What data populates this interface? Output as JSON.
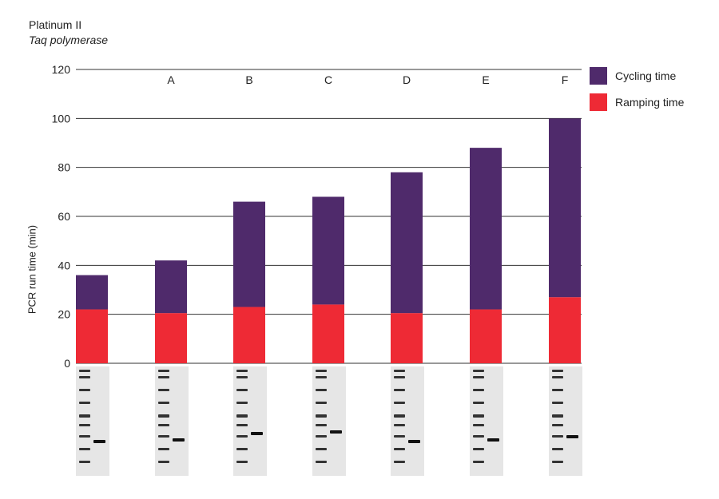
{
  "chart_data": {
    "type": "bar",
    "stacked": true,
    "title": "",
    "corner_label": [
      "Platinum II",
      "Taq polymerase"
    ],
    "categories": [
      "Platinum II Taq polymerase",
      "A",
      "B",
      "C",
      "D",
      "E",
      "F"
    ],
    "category_labels": [
      "",
      "A",
      "B",
      "C",
      "D",
      "E",
      "F"
    ],
    "series": [
      {
        "name": "Ramping time",
        "color": "#ee2a35",
        "values": [
          22,
          20.5,
          23,
          24,
          20.5,
          22,
          27
        ]
      },
      {
        "name": "Cycling time",
        "color": "#4f2a6b",
        "values": [
          14,
          21.5,
          43,
          44,
          57.5,
          66,
          73
        ]
      }
    ],
    "totals": [
      36,
      42,
      66,
      68,
      78,
      88,
      100
    ],
    "xlabel": "",
    "ylabel": "PCR run time (min)",
    "ylim": [
      0,
      120
    ],
    "yticks": [
      0,
      20,
      40,
      60,
      80,
      100,
      120
    ],
    "grid": true,
    "legend_position": "right",
    "gel_images_below_bars": true
  }
}
